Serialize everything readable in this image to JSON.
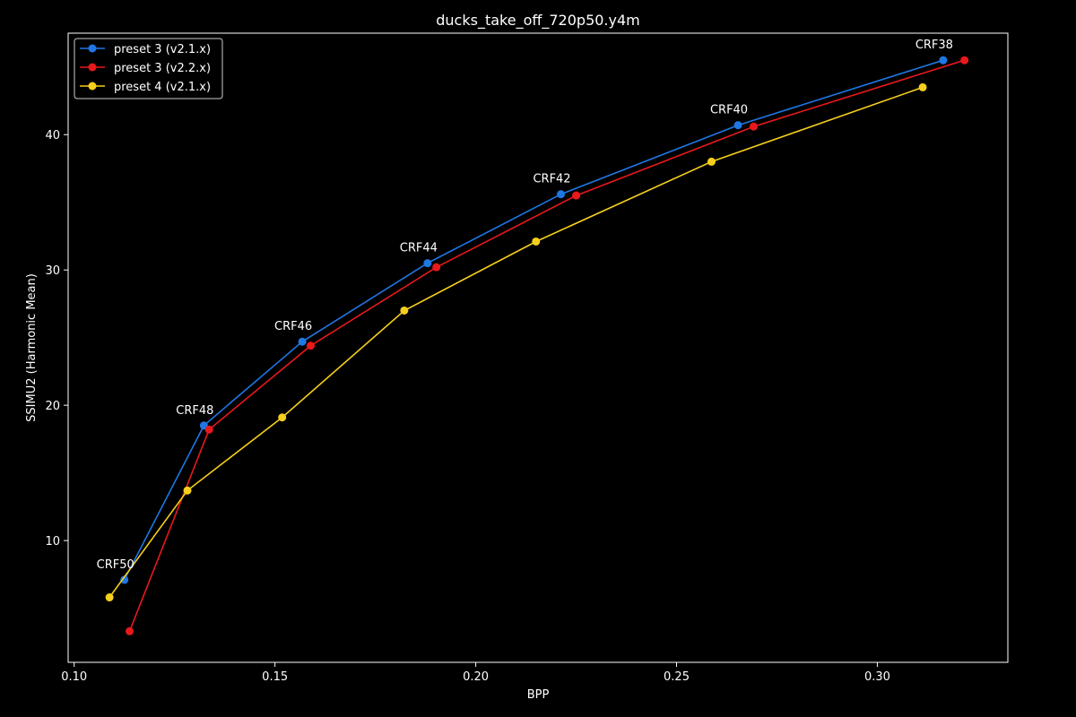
{
  "chart_data": {
    "type": "line",
    "title": "ducks_take_off_720p50.y4m",
    "xlabel": "BPP",
    "ylabel": "SSIMU2 (Harmonic Mean)",
    "xlim": [
      0.0985,
      0.3325
    ],
    "ylim": [
      1.0,
      47.5
    ],
    "xticks": [
      0.1,
      0.15,
      0.2,
      0.25,
      0.3
    ],
    "xtick_labels": [
      "0.10",
      "0.15",
      "0.20",
      "0.25",
      "0.30"
    ],
    "yticks": [
      10,
      20,
      30,
      40
    ],
    "ytick_labels": [
      "10",
      "20",
      "30",
      "40"
    ],
    "grid": false,
    "legend_position": "top-left",
    "series": [
      {
        "name": "preset 3 (v2.1.x)",
        "color": "#1f77e4",
        "x": [
          0.1125,
          0.1323,
          0.1568,
          0.188,
          0.2212,
          0.2653,
          0.3164
        ],
        "y": [
          7.1,
          18.5,
          24.7,
          30.5,
          35.6,
          40.7,
          45.5
        ]
      },
      {
        "name": "preset 3 (v2.2.x)",
        "color": "#e8191b",
        "x": [
          0.1138,
          0.1336,
          0.1589,
          0.1902,
          0.225,
          0.2692,
          0.3217
        ],
        "y": [
          3.3,
          18.2,
          24.4,
          30.2,
          35.5,
          40.6,
          45.5
        ]
      },
      {
        "name": "preset 4 (v2.1.x)",
        "color": "#f5cf1b",
        "x": [
          0.1088,
          0.1282,
          0.1518,
          0.1822,
          0.215,
          0.2587,
          0.3113
        ],
        "y": [
          5.8,
          13.7,
          19.1,
          27.0,
          32.1,
          38.0,
          43.5
        ]
      }
    ],
    "annotations": [
      {
        "text": "CRF50",
        "x": 0.1125,
        "y": 7.1
      },
      {
        "text": "CRF48",
        "x": 0.1323,
        "y": 18.5
      },
      {
        "text": "CRF46",
        "x": 0.1568,
        "y": 24.7
      },
      {
        "text": "CRF44",
        "x": 0.188,
        "y": 30.5
      },
      {
        "text": "CRF42",
        "x": 0.2212,
        "y": 35.6
      },
      {
        "text": "CRF40",
        "x": 0.2653,
        "y": 40.7
      },
      {
        "text": "CRF38",
        "x": 0.3164,
        "y": 45.5
      }
    ]
  }
}
